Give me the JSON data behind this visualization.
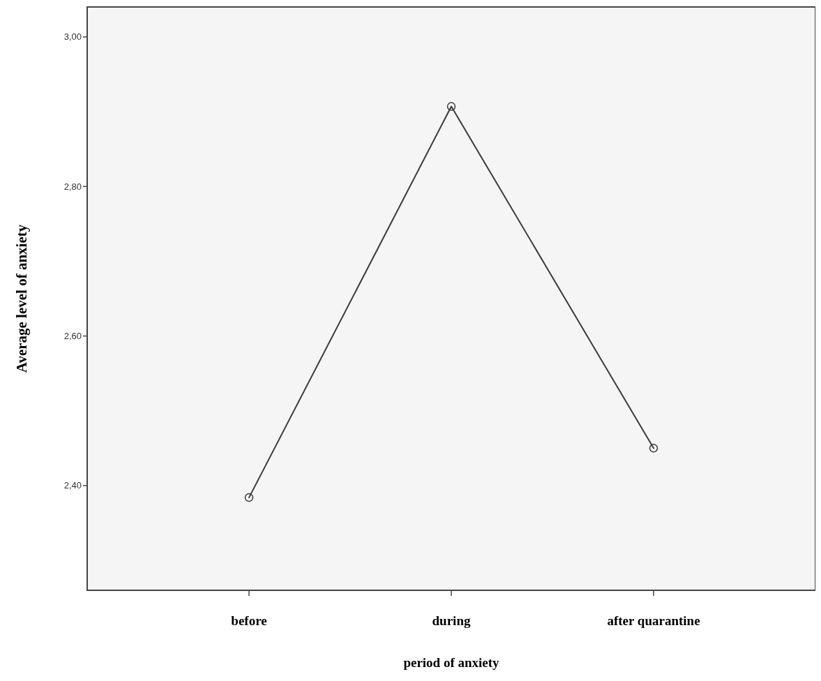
{
  "chart_data": {
    "type": "line",
    "xlabel": "period of anxiety",
    "ylabel": "Average level of anxiety",
    "categories": [
      "before",
      "during",
      "after quarantine"
    ],
    "series": [
      {
        "color": "#3a3a3a",
        "values": [
          2.384,
          2.907,
          2.45
        ]
      }
    ],
    "ylim": [
      2.26,
      3.04
    ],
    "yticks": [
      {
        "value": 2.4,
        "label": "2,40"
      },
      {
        "value": 2.6,
        "label": "2,60"
      },
      {
        "value": 2.8,
        "label": "2,80"
      },
      {
        "value": 3,
        "label": "3,00"
      }
    ],
    "marker": "circle",
    "line_style": "solid"
  }
}
